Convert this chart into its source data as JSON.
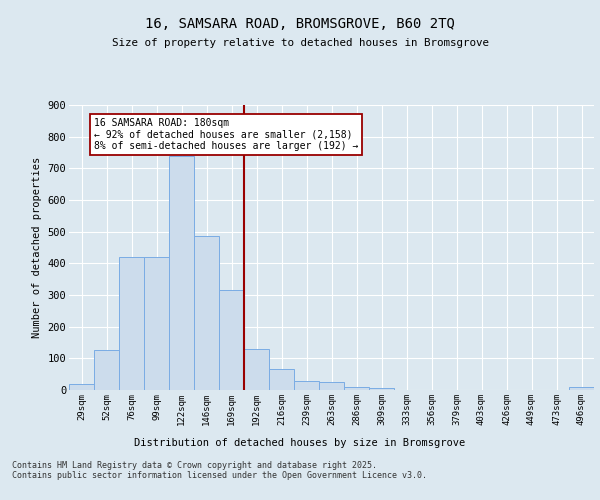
{
  "title": "16, SAMSARA ROAD, BROMSGROVE, B60 2TQ",
  "subtitle": "Size of property relative to detached houses in Bromsgrove",
  "xlabel": "Distribution of detached houses by size in Bromsgrove",
  "ylabel": "Number of detached properties",
  "bin_labels": [
    "29sqm",
    "52sqm",
    "76sqm",
    "99sqm",
    "122sqm",
    "146sqm",
    "169sqm",
    "192sqm",
    "216sqm",
    "239sqm",
    "263sqm",
    "286sqm",
    "309sqm",
    "333sqm",
    "356sqm",
    "379sqm",
    "403sqm",
    "426sqm",
    "449sqm",
    "473sqm",
    "496sqm"
  ],
  "bar_values": [
    20,
    125,
    420,
    420,
    740,
    485,
    315,
    130,
    65,
    30,
    25,
    10,
    5,
    0,
    0,
    0,
    0,
    0,
    0,
    0,
    8
  ],
  "bar_color": "#ccdcec",
  "bar_edge_color": "#7aace4",
  "vline_color": "#990000",
  "annotation_text": "16 SAMSARA ROAD: 180sqm\n← 92% of detached houses are smaller (2,158)\n8% of semi-detached houses are larger (192) →",
  "annotation_box_facecolor": "#ffffff",
  "annotation_box_edgecolor": "#990000",
  "ylim": [
    0,
    900
  ],
  "yticks": [
    0,
    100,
    200,
    300,
    400,
    500,
    600,
    700,
    800,
    900
  ],
  "bg_color": "#dce8f0",
  "footer_line1": "Contains HM Land Registry data © Crown copyright and database right 2025.",
  "footer_line2": "Contains public sector information licensed under the Open Government Licence v3.0."
}
